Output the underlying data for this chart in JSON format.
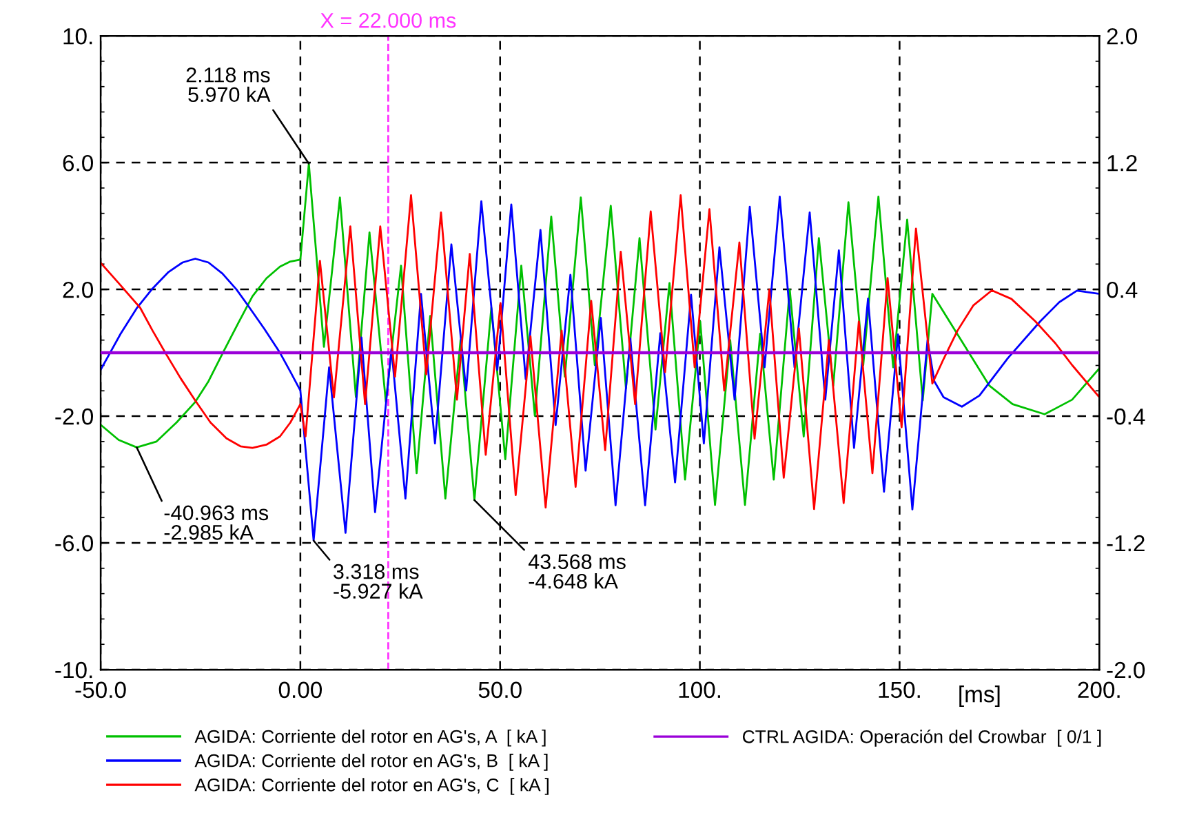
{
  "chart_data": {
    "type": "line",
    "xlabel": "[ms]",
    "xlim": [
      -50,
      200
    ],
    "xticks": [
      {
        "value": -50,
        "label": "-50.0"
      },
      {
        "value": 0,
        "label": "0.00"
      },
      {
        "value": 50,
        "label": "50.0"
      },
      {
        "value": 100,
        "label": "100."
      },
      {
        "value": 150,
        "label": "150."
      },
      {
        "value": 200,
        "label": "200."
      }
    ],
    "ylim": [
      -10,
      10
    ],
    "yticks": [
      {
        "value": -10,
        "label": "-10."
      },
      {
        "value": -6,
        "label": "-6.0"
      },
      {
        "value": -2,
        "label": "-2.0"
      },
      {
        "value": 2,
        "label": "2.0"
      },
      {
        "value": 6,
        "label": "6.0"
      },
      {
        "value": 10,
        "label": "10."
      }
    ],
    "y2lim": [
      -2,
      2
    ],
    "y2ticks": [
      {
        "value": -2,
        "label": "-2.0"
      },
      {
        "value": -1.2,
        "label": "-1.2"
      },
      {
        "value": -0.4,
        "label": "-0.4"
      },
      {
        "value": 0.4,
        "label": "0.4"
      },
      {
        "value": 1.2,
        "label": "1.2"
      },
      {
        "value": 2,
        "label": "2.0"
      }
    ],
    "grid": true,
    "legend": "bottom",
    "line_style": "solid",
    "marker": "none",
    "series": [
      {
        "name": "AGIDA: Corriente del rotor en AG's, A  [ kA ]",
        "color": "#00c000",
        "x": [
          -50,
          -45.5,
          -40.963,
          -36,
          -31,
          -26.3,
          -23,
          -19.4,
          -15.5,
          -12,
          -8.5,
          -5.1,
          -2.5,
          0,
          2.118,
          5.9,
          9.9,
          13.9,
          17.3,
          21.4,
          25.2,
          29.1,
          32.5,
          36.3,
          40.1,
          43.568,
          47.8,
          51.3,
          55.3,
          58.7,
          62.8,
          66.2,
          70.2,
          73.7,
          77.7,
          81.5,
          84.9,
          88.9,
          92.4,
          96.3,
          100.1,
          103.8,
          107.6,
          111.3,
          115.1,
          118.5,
          122.5,
          126,
          129.8,
          133.4,
          137.2,
          140.9,
          144.7,
          148.4,
          151.9,
          155.8,
          158.2,
          172.5,
          178.3,
          186.3,
          193.2,
          200
        ],
        "values": [
          -2.27,
          -2.75,
          -2.985,
          -2.8,
          -2.2,
          -1.55,
          -0.9,
          0,
          0.95,
          1.78,
          2.35,
          2.72,
          2.88,
          2.94,
          5.97,
          0.19,
          4.9,
          -1.4,
          3.8,
          -1.55,
          2.75,
          -3.8,
          1.16,
          -4.6,
          0.4,
          -4.648,
          1.42,
          -3.36,
          2.75,
          -1.99,
          4.3,
          -0.75,
          4.9,
          -0.39,
          4.64,
          -1.12,
          3.62,
          -2.42,
          2.2,
          -4.0,
          0.99,
          -4.8,
          0.4,
          -4.8,
          0.6,
          -4.0,
          2.0,
          -2.64,
          3.62,
          -1.04,
          4.75,
          -0.39,
          4.93,
          -0.46,
          4.2,
          -1.5,
          1.86,
          -1.04,
          -1.62,
          -1.94,
          -1.48,
          -0.49
        ]
      },
      {
        "name": "AGIDA: Corriente del rotor en AG's, B  [ kA ]",
        "color": "#0000ff",
        "x": [
          -50,
          -45,
          -41,
          -37.2,
          -33,
          -29.5,
          -26.3,
          -23,
          -19.5,
          -16,
          -13.1,
          -9,
          -5.1,
          -2.5,
          0,
          3.318,
          7.2,
          11.3,
          15.3,
          18.7,
          22.8,
          26.3,
          30.2,
          33.7,
          37.8,
          41.5,
          45.3,
          49.3,
          52.8,
          56.4,
          60.1,
          63.9,
          67.6,
          71.4,
          75.2,
          78.9,
          82.6,
          86.3,
          90.1,
          93.8,
          97.8,
          101,
          104.9,
          108.7,
          112.5,
          116.2,
          120,
          123.7,
          127.5,
          131.4,
          134.8,
          138.6,
          142.1,
          146.1,
          149.6,
          153.2,
          157,
          158.7,
          161,
          165.6,
          170,
          177.1,
          185.2,
          190,
          194.4,
          200
        ],
        "values": [
          -0.54,
          0.6,
          1.4,
          2.0,
          2.55,
          2.85,
          2.97,
          2.85,
          2.5,
          2.0,
          1.49,
          0.75,
          0,
          -0.6,
          -1.19,
          -5.927,
          -0.46,
          -5.68,
          0.48,
          -5.03,
          0.12,
          -4.6,
          1.86,
          -2.86,
          3.42,
          -1.19,
          4.78,
          -0.54,
          4.68,
          -0.83,
          3.88,
          -2.28,
          2.46,
          -3.72,
          1.1,
          -4.81,
          0.45,
          -4.81,
          0.62,
          -4.09,
          1.83,
          -2.86,
          3.33,
          -1.48,
          4.61,
          -0.46,
          4.93,
          -0.46,
          4.43,
          -1.48,
          3.23,
          -3.0,
          1.71,
          -4.38,
          0.58,
          -4.94,
          0.4,
          -0.9,
          -1.4,
          -1.7,
          -1.35,
          -0.17,
          0.99,
          1.6,
          1.96,
          1.86
        ]
      },
      {
        "name": "AGIDA: Corriente del rotor en AG's, C  [ kA ]",
        "color": "#ff0000",
        "x": [
          -50,
          -45.5,
          -40.1,
          -37,
          -33.8,
          -30,
          -26.3,
          -22.5,
          -18.5,
          -15,
          -12,
          -8.5,
          -5.1,
          -2.5,
          0,
          1.3,
          4.9,
          8.4,
          12.5,
          16.2,
          20,
          23.7,
          27.7,
          31.5,
          35.2,
          39.2,
          42.4,
          46.4,
          50.1,
          53.9,
          57.6,
          61.4,
          65.4,
          68.9,
          72.8,
          76.3,
          80.2,
          83.8,
          87.7,
          91.3,
          95.2,
          98.7,
          102.4,
          106.1,
          109.9,
          113.7,
          117.4,
          121,
          124.8,
          128.6,
          132.3,
          136,
          139.8,
          143.2,
          147,
          150.5,
          154.1,
          158.2,
          161,
          164.5,
          168.5,
          173.1,
          178,
          184,
          189,
          193.2,
          200
        ],
        "values": [
          2.84,
          2.2,
          1.42,
          0.7,
          0,
          -0.8,
          -1.51,
          -2.2,
          -2.7,
          -2.95,
          -3.0,
          -2.9,
          -2.64,
          -2.2,
          -1.62,
          -2.64,
          2.9,
          -1.41,
          3.99,
          -1.62,
          3.99,
          -0.75,
          4.97,
          -0.68,
          4.43,
          -1.48,
          3.12,
          -3.22,
          1.57,
          -4.49,
          0.52,
          -4.88,
          0.7,
          -4.23,
          1.64,
          -3.07,
          3.19,
          -1.62,
          4.46,
          -0.61,
          4.97,
          -0.46,
          4.53,
          -1.19,
          3.48,
          -2.71,
          2.0,
          -3.94,
          0.77,
          -4.93,
          0.4,
          -4.74,
          0.99,
          -3.8,
          2.36,
          -2.35,
          3.92,
          -0.97,
          -0.2,
          0.7,
          1.5,
          1.97,
          1.7,
          0.99,
          0.3,
          -0.39,
          -1.4
        ]
      },
      {
        "name": "CTRL AGIDA: Operación del Crowbar  [ 0/1 ]",
        "color": "#9a00d8",
        "axis": "y2",
        "x": [
          -50,
          200
        ],
        "values": [
          0,
          0
        ]
      }
    ],
    "ref_lines": [
      {
        "axis": "x",
        "value": 22,
        "label": "X = 22.000 ms",
        "color": "#ff33ff",
        "line_style": "dashed"
      }
    ],
    "annotations": [
      {
        "text": "2.118 ms\n5.970 kA",
        "x": 2.118,
        "y": 5.97
      },
      {
        "text": "-40.963 ms\n-2.985 kA",
        "x": -40.963,
        "y": -2.985
      },
      {
        "text": "3.318 ms\n-5.927 kA",
        "x": 3.318,
        "y": -5.927
      },
      {
        "text": "43.568 ms\n-4.648 kA",
        "x": 43.568,
        "y": -4.648
      }
    ]
  }
}
